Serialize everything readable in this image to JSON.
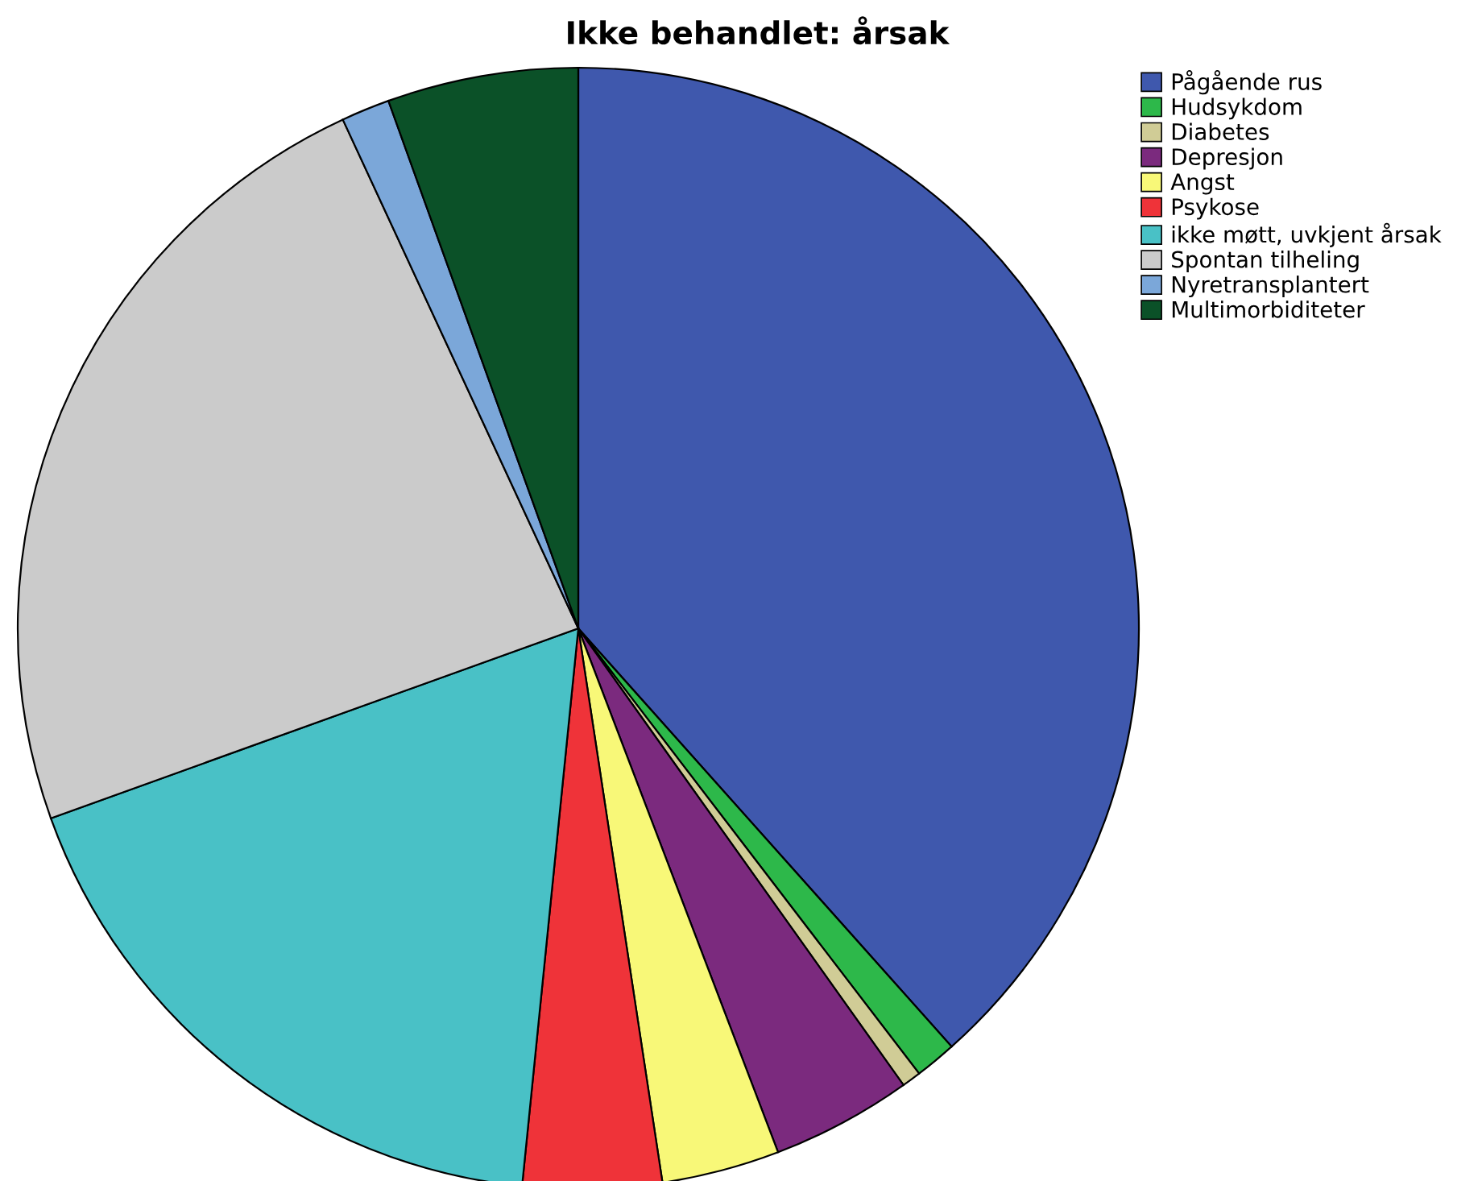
{
  "chart_data": {
    "type": "pie",
    "title": "Ikke behandlet: årsak",
    "legend": "top right",
    "categories": [
      "Pågående rus",
      "Hudsykdom",
      "Diabetes",
      "Depresjon",
      "Angst",
      "Psykose",
      "ikke møtt, uvkjent årsak",
      "Spontan tilheling",
      "Nyretransplantert",
      "Multimorbiditeter"
    ],
    "values": [
      38.4,
      1.2,
      0.55,
      4.05,
      3.4,
      4.0,
      17.9,
      23.6,
      1.4,
      5.5
    ],
    "colors": [
      "#3f58ad",
      "#2db84a",
      "#d0cc96",
      "#7b2a7e",
      "#f8f878",
      "#ef3339",
      "#49c1c6",
      "#cbcbcb",
      "#7ba7d9",
      "#0b5128"
    ]
  }
}
